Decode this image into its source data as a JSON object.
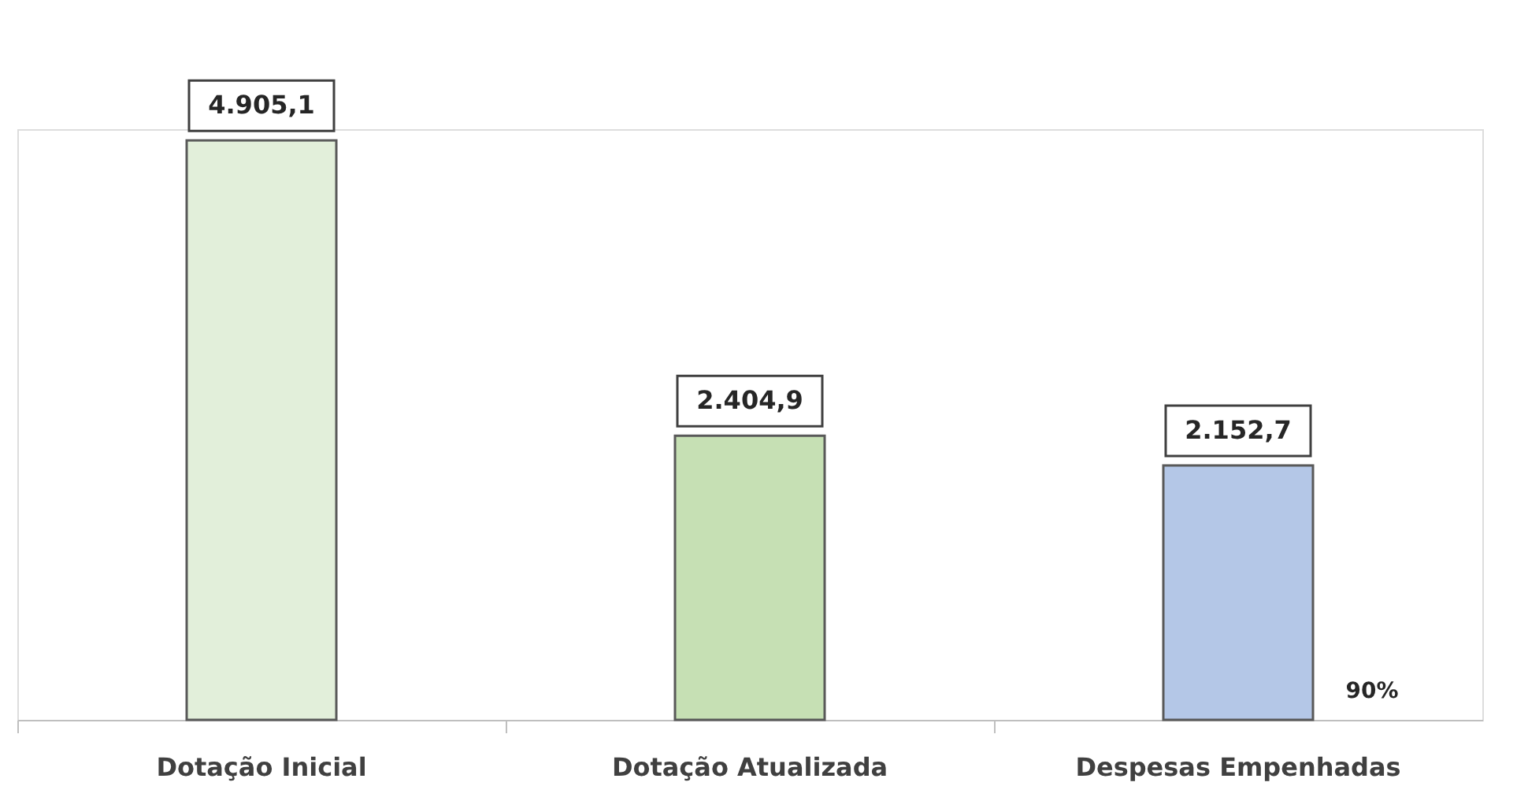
{
  "chart_data": {
    "type": "bar",
    "categories": [
      "Dotação Inicial",
      "Dotação Atualizada",
      "Despesas Empenhadas"
    ],
    "values": [
      4905.1,
      2404.9,
      2152.7
    ],
    "value_labels": [
      "4.905,1",
      "2.404,9",
      "2.152,7"
    ],
    "colors": [
      "#e2efda",
      "#c6e0b4",
      "#b4c7e7"
    ],
    "annotations": [
      "90%"
    ],
    "grid": false
  }
}
